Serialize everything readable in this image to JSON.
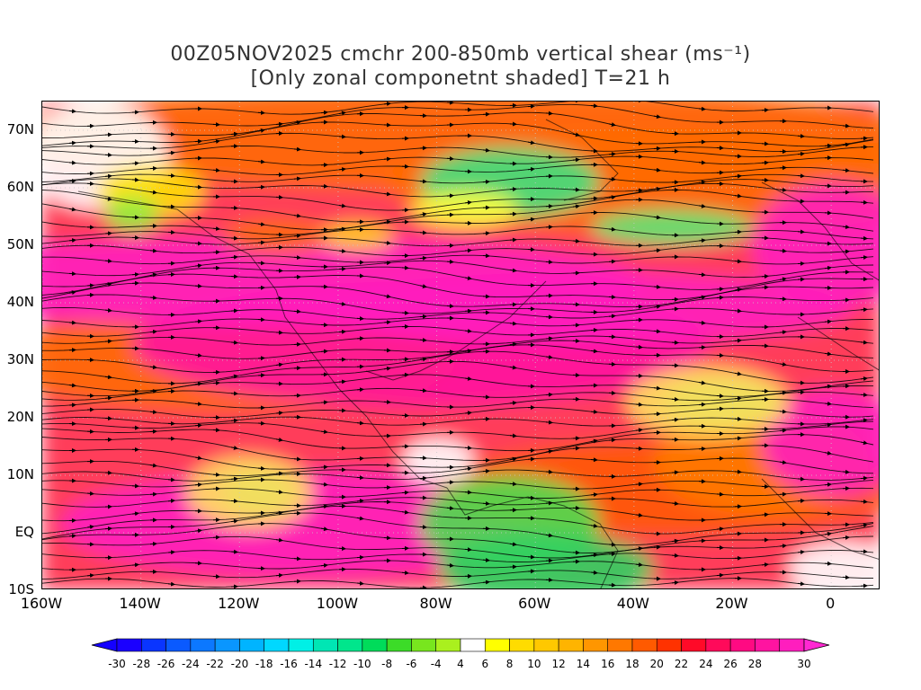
{
  "title": {
    "line1": "00Z05NOV2025 cmchr 200-850mb vertical shear (ms⁻¹)",
    "line2": "[Only zonal componetnt shaded] T=21 h"
  },
  "axes": {
    "lat_labels": [
      "70N",
      "60N",
      "50N",
      "40N",
      "30N",
      "20N",
      "10N",
      "EQ",
      "10S"
    ],
    "lat_values": [
      70,
      60,
      50,
      40,
      30,
      20,
      10,
      0,
      -10
    ],
    "lon_labels": [
      "160W",
      "140W",
      "120W",
      "100W",
      "80W",
      "60W",
      "40W",
      "20W",
      "0"
    ],
    "lon_values": [
      -160,
      -140,
      -120,
      -100,
      -80,
      -60,
      -40,
      -20,
      0
    ],
    "lon_range": [
      -160,
      10
    ],
    "lat_range": [
      -10,
      75
    ]
  },
  "colorbar": {
    "labels": [
      "-30",
      "-28",
      "-26",
      "-24",
      "-22",
      "-20",
      "-18",
      "-16",
      "-14",
      "-12",
      "-10",
      "-8",
      "-6",
      "-4",
      "4",
      "6",
      "8",
      "10",
      "12",
      "14",
      "16",
      "18",
      "20",
      "22",
      "24",
      "26",
      "28",
      "30"
    ],
    "colors": [
      "#1a00ff",
      "#0a35ff",
      "#0a5aff",
      "#0c78ff",
      "#0a96ff",
      "#00b4ff",
      "#00d8ff",
      "#00f0e6",
      "#00e6b4",
      "#00e68c",
      "#00dc5a",
      "#3cdc28",
      "#78e61e",
      "#aaf01e",
      "#ffffff",
      "#ffff00",
      "#ffdc00",
      "#ffc800",
      "#ffb400",
      "#ff9600",
      "#ff7800",
      "#ff5a00",
      "#ff3200",
      "#ff0a28",
      "#ff0a5a",
      "#ff0a82",
      "#ff14a0",
      "#ff1ebe"
    ],
    "end_colors": {
      "low": "#1400ff",
      "high": "#ff28d2"
    }
  },
  "shading_note": "Only zonal component shaded",
  "colors": {
    "coastline": "#000000",
    "streamline": "#000000",
    "grid": "#c8c8c8"
  }
}
